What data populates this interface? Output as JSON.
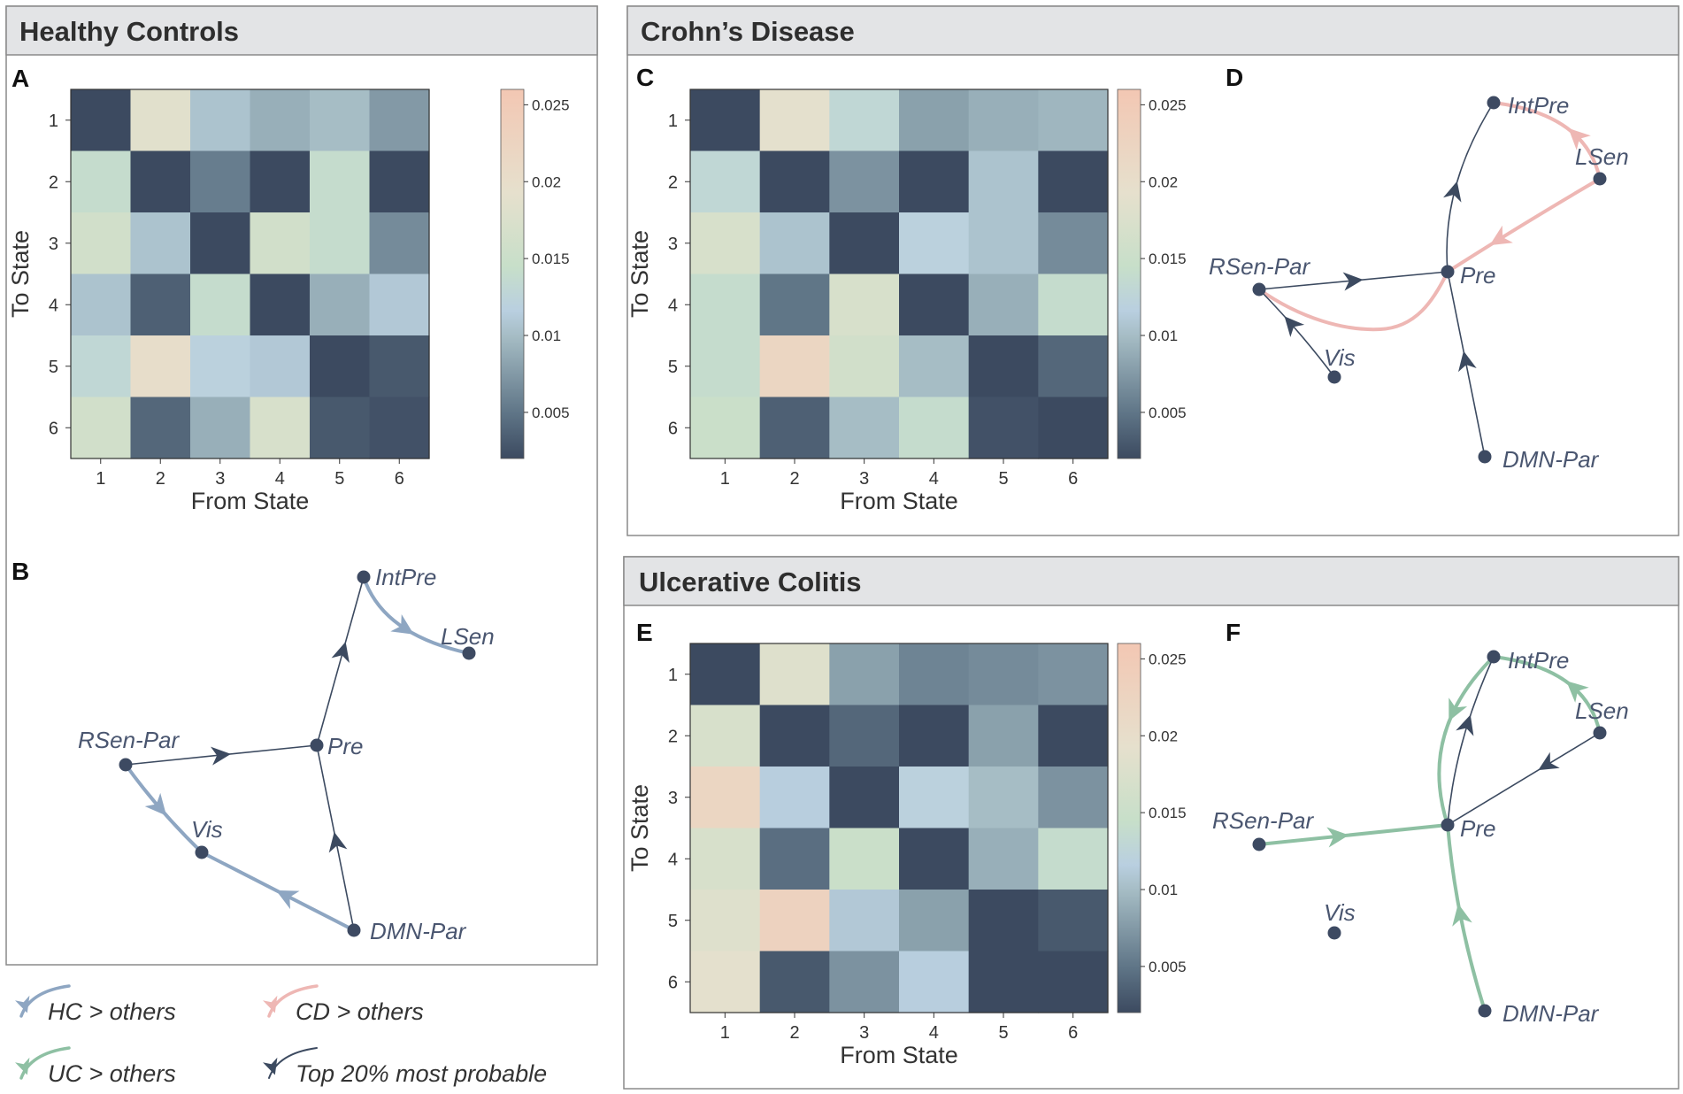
{
  "figure": {
    "groups": {
      "hc": {
        "title": "Healthy Controls"
      },
      "cd": {
        "title": "Crohn’s Disease"
      },
      "uc": {
        "title": "Ulcerative Colitis"
      }
    },
    "panel_letters": {
      "A": "A",
      "B": "B",
      "C": "C",
      "D": "D",
      "E": "E",
      "F": "F"
    },
    "colors": {
      "hc_highlight": "#8ea6c2",
      "cd_highlight": "#eeb7b4",
      "uc_highlight": "#8ec0a3",
      "top20": "#3c4a60",
      "node": "#3d4a62",
      "label": "#4a5670",
      "header_bg": "#e3e4e6"
    },
    "colorbar": {
      "ticks": [
        0.005,
        0.01,
        0.015,
        0.02,
        0.025
      ],
      "tick_labels": [
        "0.005",
        "0.01",
        "0.015",
        "0.02",
        "0.025"
      ],
      "range": [
        0.002,
        0.026
      ],
      "stops": [
        "#3c4a60",
        "#5e7486",
        "#a5bcc4",
        "#b9cfe0",
        "#c7dfc9",
        "#e6e0cd",
        "#f3c7b3"
      ]
    },
    "legend": [
      {
        "key": "hc",
        "label": "HC > others"
      },
      {
        "key": "cd",
        "label": "CD > others"
      },
      {
        "key": "uc",
        "label": "UC > others"
      },
      {
        "key": "top20",
        "label": "Top 20% most probable"
      }
    ],
    "networks": {
      "node_labels": [
        "IntPre",
        "LSen",
        "Pre",
        "RSen-Par",
        "Vis",
        "DMN-Par"
      ],
      "B": {
        "highlight": "hc",
        "highlight_edges": [
          [
            "IntPre",
            "LSen"
          ],
          [
            "RSen-Par",
            "Vis"
          ],
          [
            "DMN-Par",
            "Vis"
          ]
        ],
        "top_edges": [
          [
            "Pre",
            "IntPre"
          ],
          [
            "RSen-Par",
            "Pre"
          ],
          [
            "DMN-Par",
            "Pre"
          ]
        ]
      },
      "D": {
        "highlight": "cd",
        "highlight_edges": [
          [
            "LSen",
            "IntPre"
          ],
          [
            "LSen",
            "Pre"
          ],
          [
            "Pre",
            "RSen-Par"
          ]
        ],
        "top_edges": [
          [
            "Pre",
            "IntPre"
          ],
          [
            "RSen-Par",
            "Pre"
          ],
          [
            "Vis",
            "RSen-Par"
          ],
          [
            "DMN-Par",
            "Pre"
          ]
        ]
      },
      "F": {
        "highlight": "uc",
        "highlight_edges": [
          [
            "LSen",
            "IntPre"
          ],
          [
            "IntPre",
            "Pre"
          ],
          [
            "RSen-Par",
            "Pre"
          ],
          [
            "DMN-Par",
            "Pre"
          ]
        ],
        "top_edges": [
          [
            "Pre",
            "IntPre"
          ],
          [
            "LSen",
            "Pre"
          ]
        ]
      }
    }
  },
  "chart_data": [
    {
      "type": "heatmap",
      "panel": "A",
      "title": "Healthy Controls",
      "xlabel": "From State",
      "ylabel": "To State",
      "x_tick_labels": [
        "1",
        "2",
        "3",
        "4",
        "5",
        "6"
      ],
      "y_tick_labels": [
        "1",
        "2",
        "3",
        "4",
        "5",
        "6"
      ],
      "colorbar_range": [
        0.002,
        0.026
      ],
      "values": [
        [
          0.002,
          0.0185,
          0.0105,
          0.009,
          0.01,
          0.0075
        ],
        [
          0.014,
          0.002,
          0.0055,
          0.002,
          0.014,
          0.002
        ],
        [
          0.016,
          0.0105,
          0.002,
          0.016,
          0.014,
          0.0065
        ],
        [
          0.0105,
          0.0035,
          0.014,
          0.002,
          0.009,
          0.011
        ],
        [
          0.013,
          0.02,
          0.012,
          0.011,
          0.002,
          0.003
        ],
        [
          0.016,
          0.004,
          0.009,
          0.017,
          0.003,
          0.0025
        ]
      ]
    },
    {
      "type": "heatmap",
      "panel": "C",
      "title": "Crohn’s Disease",
      "xlabel": "From State",
      "ylabel": "To State",
      "x_tick_labels": [
        "1",
        "2",
        "3",
        "4",
        "5",
        "6"
      ],
      "y_tick_labels": [
        "1",
        "2",
        "3",
        "4",
        "5",
        "6"
      ],
      "colorbar_range": [
        0.002,
        0.026
      ],
      "values": [
        [
          0.002,
          0.019,
          0.013,
          0.008,
          0.009,
          0.0095
        ],
        [
          0.013,
          0.002,
          0.007,
          0.002,
          0.0105,
          0.002
        ],
        [
          0.017,
          0.0105,
          0.002,
          0.012,
          0.0105,
          0.0065
        ],
        [
          0.014,
          0.005,
          0.017,
          0.002,
          0.009,
          0.014
        ],
        [
          0.014,
          0.022,
          0.016,
          0.01,
          0.002,
          0.004
        ],
        [
          0.015,
          0.0035,
          0.01,
          0.014,
          0.0025,
          0.002
        ]
      ]
    },
    {
      "type": "heatmap",
      "panel": "E",
      "title": "Ulcerative Colitis",
      "xlabel": "From State",
      "ylabel": "To State",
      "x_tick_labels": [
        "1",
        "2",
        "3",
        "4",
        "5",
        "6"
      ],
      "y_tick_labels": [
        "1",
        "2",
        "3",
        "4",
        "5",
        "6"
      ],
      "colorbar_range": [
        0.002,
        0.026
      ],
      "values": [
        [
          0.002,
          0.018,
          0.008,
          0.006,
          0.0065,
          0.007
        ],
        [
          0.017,
          0.002,
          0.004,
          0.002,
          0.008,
          0.002
        ],
        [
          0.022,
          0.0115,
          0.002,
          0.012,
          0.01,
          0.007
        ],
        [
          0.017,
          0.0045,
          0.015,
          0.002,
          0.009,
          0.014
        ],
        [
          0.018,
          0.023,
          0.011,
          0.008,
          0.002,
          0.003
        ],
        [
          0.019,
          0.003,
          0.007,
          0.0115,
          0.002,
          0.002
        ]
      ]
    }
  ]
}
